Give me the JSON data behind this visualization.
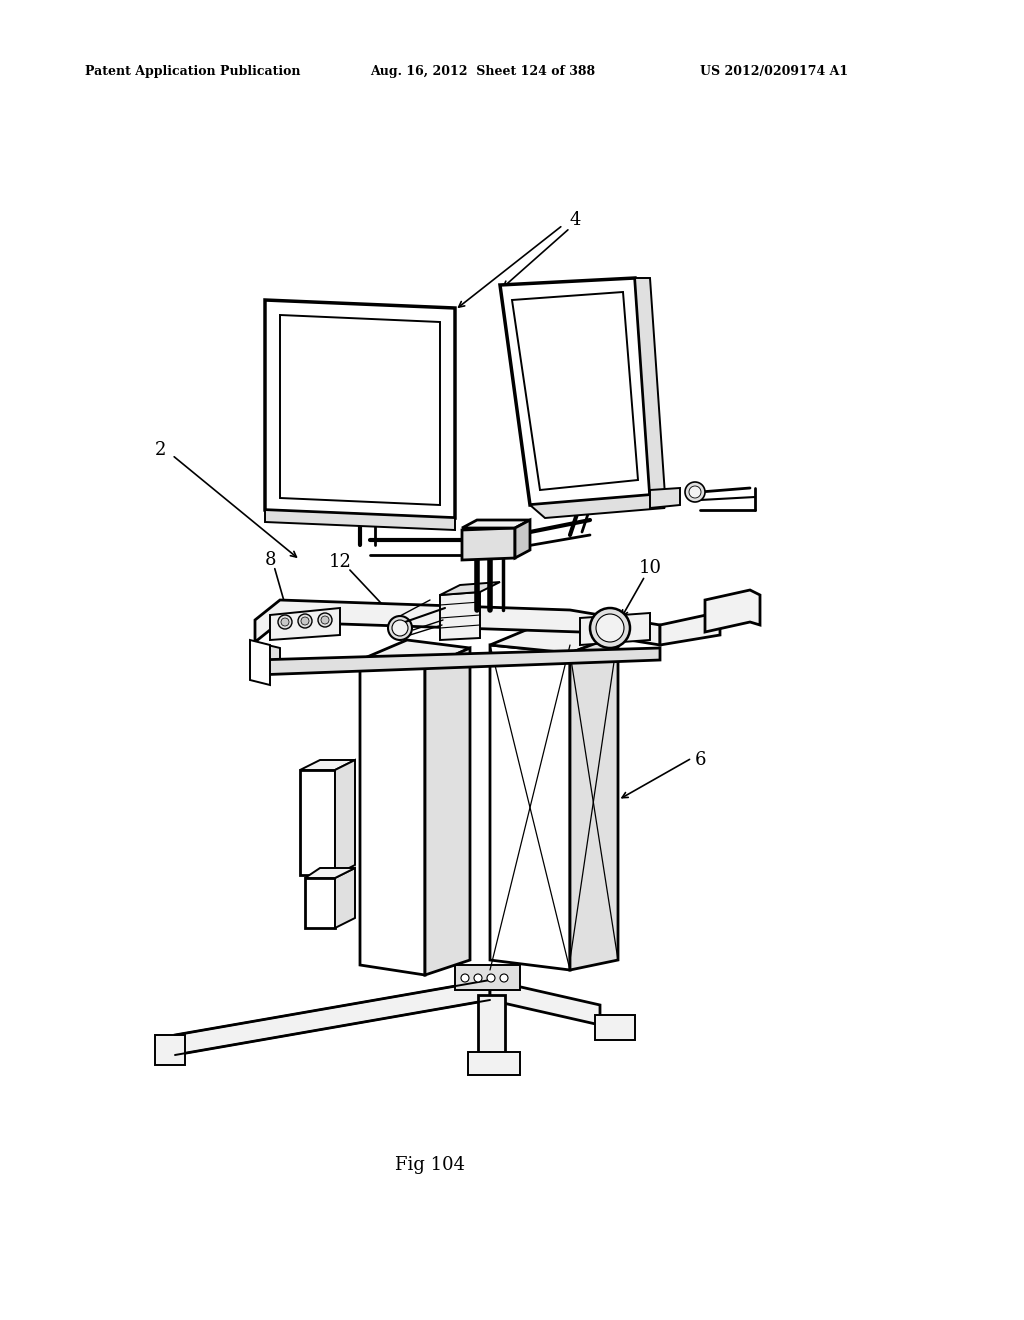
{
  "background_color": "#ffffff",
  "header_left": "Patent Application Publication",
  "header_middle": "Aug. 16, 2012  Sheet 124 of 388",
  "header_right": "US 2012/0209174 A1",
  "figure_label": "Fig 104",
  "line_color": "#000000",
  "fill_light": "#f2f2f2",
  "fill_mid": "#e0e0e0",
  "fill_dark": "#c8c8c8",
  "fill_white": "#ffffff"
}
